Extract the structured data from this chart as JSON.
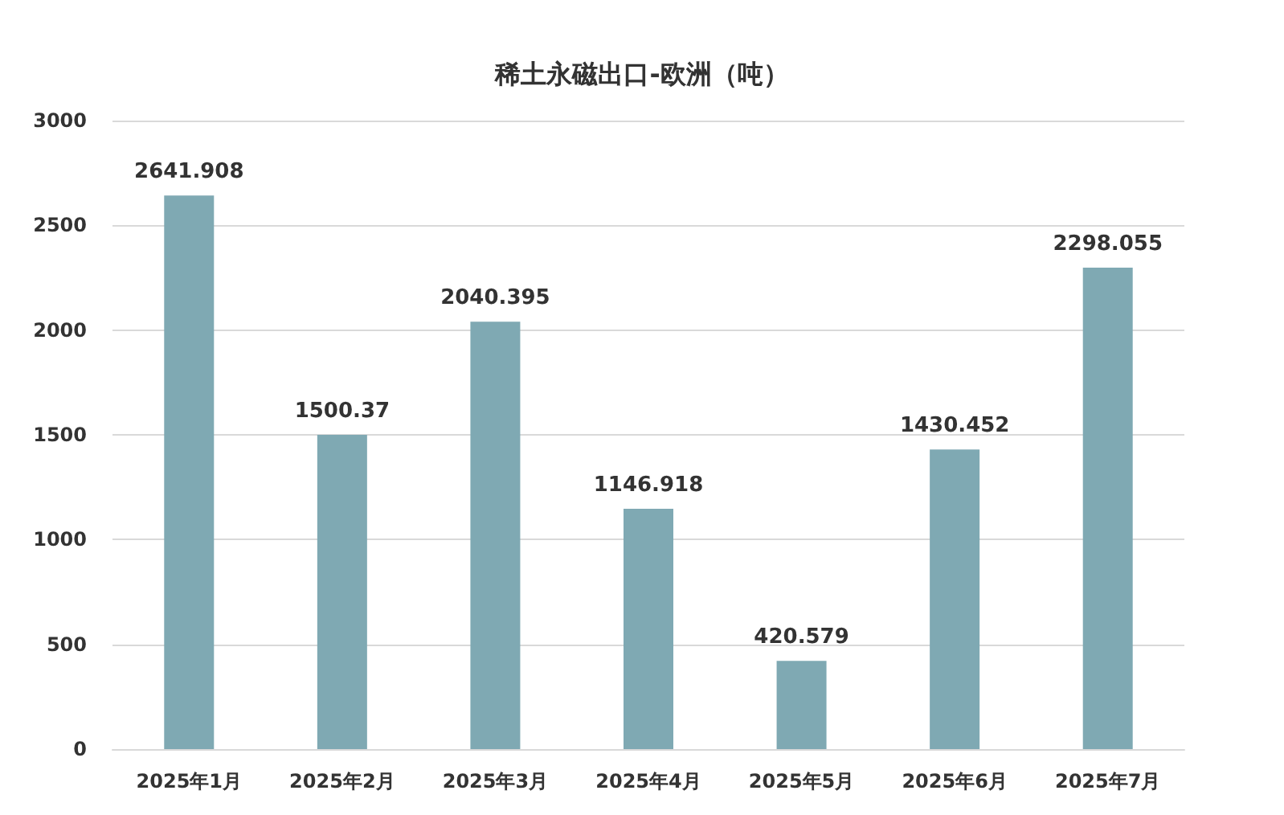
{
  "chart_data": {
    "type": "bar",
    "title": "稀土永磁出口-欧洲（吨）",
    "categories": [
      "2025年1月",
      "2025年2月",
      "2025年3月",
      "2025年4月",
      "2025年5月",
      "2025年6月",
      "2025年7月"
    ],
    "values": [
      2641.908,
      1500.37,
      2040.395,
      1146.918,
      420.579,
      1430.452,
      2298.055
    ],
    "color": "#7fa9b3",
    "ylim": [
      0,
      3000
    ],
    "yticks": [
      0,
      500,
      1000,
      1500,
      2000,
      2500,
      3000
    ],
    "grid": "y",
    "data_labels": true
  }
}
